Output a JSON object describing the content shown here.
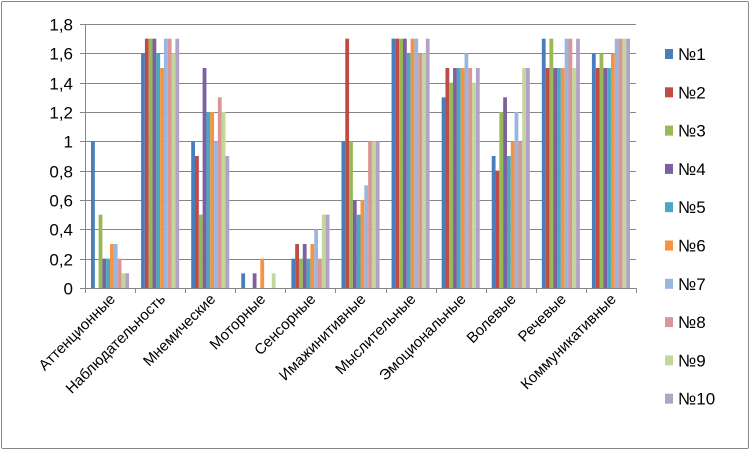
{
  "chart_data": {
    "type": "bar",
    "title": "",
    "xlabel": "",
    "ylabel": "",
    "ylim": [
      0,
      1.8
    ],
    "ytick_step": 0.2,
    "ytick_labels": [
      "0",
      "0,2",
      "0,4",
      "0,6",
      "0,8",
      "1",
      "1,2",
      "1,4",
      "1,6",
      "1,8"
    ],
    "grid": "horizontal",
    "legend_position": "right",
    "categories": [
      "Аттенционные",
      "Наблюдательность",
      "Мнемические",
      "Моторные",
      "Сенсорные",
      "Имажинитивные",
      "Мыслительные",
      "Эмоциональные",
      "Волевые",
      "Речевые",
      "Коммуникативные"
    ],
    "series": [
      {
        "name": "№1",
        "color": "#4A7EBB",
        "values": [
          1.0,
          1.6,
          1.0,
          0.1,
          0.2,
          1.0,
          1.7,
          1.3,
          0.9,
          1.7,
          1.6
        ]
      },
      {
        "name": "№2",
        "color": "#BE4B48",
        "values": [
          0.0,
          1.7,
          0.9,
          0.0,
          0.3,
          1.7,
          1.7,
          1.5,
          0.8,
          1.5,
          1.5
        ]
      },
      {
        "name": "№3",
        "color": "#98B954",
        "values": [
          0.5,
          1.7,
          0.5,
          0.0,
          0.2,
          1.0,
          1.7,
          1.4,
          1.2,
          1.7,
          1.6
        ]
      },
      {
        "name": "№4",
        "color": "#7D60A0",
        "values": [
          0.2,
          1.7,
          1.5,
          0.1,
          0.3,
          0.6,
          1.7,
          1.5,
          1.3,
          1.5,
          1.5
        ]
      },
      {
        "name": "№5",
        "color": "#46AAC5",
        "values": [
          0.2,
          1.6,
          1.2,
          0.0,
          0.2,
          0.5,
          1.6,
          1.5,
          0.9,
          1.5,
          1.5
        ]
      },
      {
        "name": "№6",
        "color": "#F69240",
        "values": [
          0.3,
          1.5,
          1.2,
          0.2,
          0.3,
          0.6,
          1.7,
          1.5,
          1.0,
          1.5,
          1.6
        ]
      },
      {
        "name": "№7",
        "color": "#9BB6DE",
        "values": [
          0.3,
          1.7,
          1.0,
          0.0,
          0.4,
          0.7,
          1.7,
          1.6,
          1.2,
          1.7,
          1.7
        ]
      },
      {
        "name": "№8",
        "color": "#DA9594",
        "values": [
          0.2,
          1.7,
          1.3,
          0.0,
          0.2,
          1.0,
          1.6,
          1.5,
          1.0,
          1.7,
          1.7
        ]
      },
      {
        "name": "№9",
        "color": "#C3D69B",
        "values": [
          0.1,
          1.6,
          1.2,
          0.1,
          0.5,
          1.0,
          1.6,
          1.4,
          1.5,
          1.5,
          1.7
        ]
      },
      {
        "name": "№10",
        "color": "#B3A2C7",
        "values": [
          0.1,
          1.7,
          0.9,
          0.0,
          0.5,
          1.0,
          1.7,
          1.5,
          1.5,
          1.7,
          1.7
        ]
      }
    ]
  }
}
